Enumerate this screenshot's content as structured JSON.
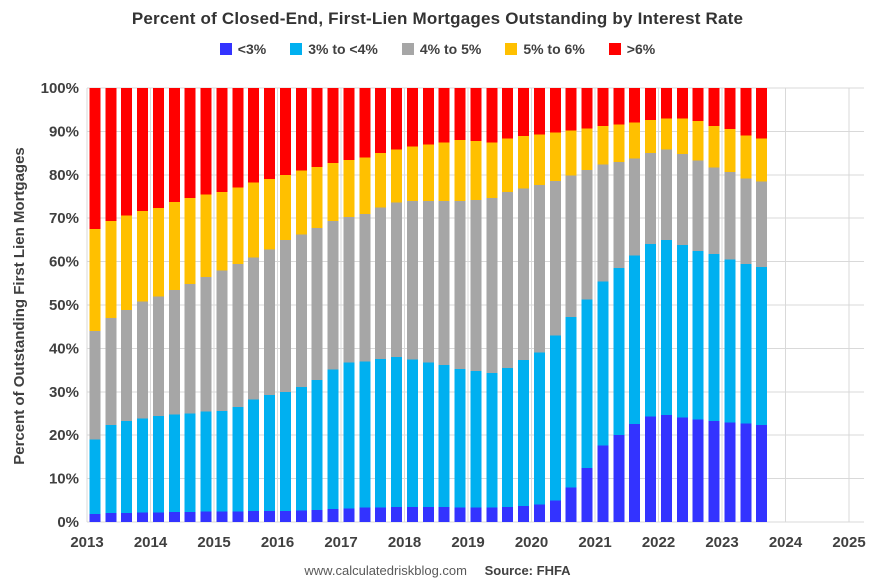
{
  "title": "Percent of Closed-End, First-Lien Mortgages Outstanding by Interest Rate",
  "y_axis_title": "Percent of Outstanding First Lien Mortgages",
  "footer": {
    "site": "www.calculatedriskblog.com",
    "source": "Source: FHFA"
  },
  "chart_data": {
    "type": "bar",
    "stacked": true,
    "title": "Percent of Closed-End, First-Lien Mortgages Outstanding by Interest Rate",
    "ylabel": "Percent of Outstanding First Lien Mortgages",
    "xlabel": "",
    "ylim": [
      0,
      100
    ],
    "grid": true,
    "legend_position": "top",
    "y_ticks": [
      "0%",
      "10%",
      "20%",
      "30%",
      "40%",
      "50%",
      "60%",
      "70%",
      "80%",
      "90%",
      "100%"
    ],
    "x_ticks": [
      "2013",
      "2014",
      "2015",
      "2016",
      "2017",
      "2018",
      "2019",
      "2020",
      "2021",
      "2022",
      "2023",
      "2024",
      "2025"
    ],
    "x": [
      "2013 Q1",
      "2013 Q2",
      "2013 Q3",
      "2013 Q4",
      "2014 Q1",
      "2014 Q2",
      "2014 Q3",
      "2014 Q4",
      "2015 Q1",
      "2015 Q2",
      "2015 Q3",
      "2015 Q4",
      "2016 Q1",
      "2016 Q2",
      "2016 Q3",
      "2016 Q4",
      "2017 Q1",
      "2017 Q2",
      "2017 Q3",
      "2017 Q4",
      "2018 Q1",
      "2018 Q2",
      "2018 Q3",
      "2018 Q4",
      "2019 Q1",
      "2019 Q2",
      "2019 Q3",
      "2019 Q4",
      "2020 Q1",
      "2020 Q2",
      "2020 Q3",
      "2020 Q4",
      "2021 Q1",
      "2021 Q2",
      "2021 Q3",
      "2021 Q4",
      "2022 Q1",
      "2022 Q2",
      "2022 Q3",
      "2022 Q4",
      "2023 Q1",
      "2023 Q2",
      "2023 Q3"
    ],
    "series": [
      {
        "name": "<3%",
        "color": "#3333FF",
        "values": [
          1.9,
          2.1,
          2.1,
          2.2,
          2.2,
          2.3,
          2.3,
          2.4,
          2.4,
          2.4,
          2.5,
          2.5,
          2.5,
          2.6,
          2.8,
          3.0,
          3.1,
          3.3,
          3.4,
          3.5,
          3.5,
          3.5,
          3.4,
          3.4,
          3.4,
          3.3,
          3.5,
          3.7,
          4.0,
          5.0,
          8.0,
          12.5,
          17.6,
          20.0,
          22.6,
          24.3,
          24.6,
          24.1,
          23.6,
          23.3,
          22.9,
          22.7,
          22.3
        ]
      },
      {
        "name": "3% to <4%",
        "color": "#00B0F0",
        "values": [
          17.1,
          20.3,
          21.2,
          21.7,
          22.2,
          22.5,
          22.7,
          23.1,
          23.2,
          24.1,
          25.7,
          26.8,
          27.4,
          28.5,
          29.9,
          32.1,
          33.7,
          33.7,
          34.2,
          34.5,
          34.0,
          33.2,
          32.8,
          31.9,
          31.4,
          31.0,
          32.0,
          33.6,
          35.0,
          38.0,
          39.2,
          38.8,
          37.8,
          38.5,
          38.8,
          39.7,
          40.4,
          39.7,
          38.9,
          38.5,
          37.6,
          36.8,
          36.5
        ]
      },
      {
        "name": "4% to 5%",
        "color": "#A6A6A6",
        "values": [
          25.0,
          24.6,
          25.5,
          26.9,
          27.6,
          28.7,
          29.8,
          30.9,
          32.4,
          33.0,
          32.8,
          33.5,
          35.1,
          35.2,
          35.0,
          34.2,
          33.5,
          34.0,
          34.9,
          35.6,
          36.5,
          37.3,
          37.8,
          38.7,
          39.4,
          40.4,
          40.5,
          39.6,
          38.6,
          35.6,
          32.6,
          29.8,
          27.0,
          24.5,
          22.4,
          21.0,
          20.8,
          21.0,
          20.8,
          19.9,
          20.1,
          19.6,
          19.6
        ]
      },
      {
        "name": "5% to 6%",
        "color": "#FFC000",
        "values": [
          23.5,
          22.3,
          21.8,
          20.9,
          20.4,
          20.2,
          19.8,
          19.1,
          18.0,
          17.6,
          17.2,
          16.2,
          15.0,
          14.7,
          14.1,
          13.4,
          13.1,
          13.0,
          12.5,
          12.2,
          12.5,
          13.0,
          13.5,
          14.0,
          13.6,
          12.8,
          12.4,
          12.0,
          11.7,
          11.2,
          10.4,
          9.6,
          8.9,
          8.6,
          8.2,
          7.6,
          7.2,
          8.2,
          9.1,
          9.6,
          10.0,
          9.9,
          10.0
        ]
      },
      {
        "name": ">6%",
        "color": "#FF0000",
        "values": [
          32.5,
          30.7,
          29.4,
          28.3,
          27.6,
          26.3,
          25.4,
          24.5,
          24.0,
          22.9,
          21.8,
          21.0,
          20.0,
          19.0,
          18.2,
          17.3,
          16.6,
          16.0,
          15.0,
          14.2,
          13.5,
          13.0,
          12.5,
          12.0,
          12.2,
          12.5,
          11.6,
          11.1,
          10.7,
          10.2,
          9.8,
          9.3,
          8.7,
          8.4,
          8.0,
          7.4,
          7.0,
          7.0,
          7.6,
          8.7,
          9.4,
          11.0,
          11.6
        ]
      }
    ]
  }
}
